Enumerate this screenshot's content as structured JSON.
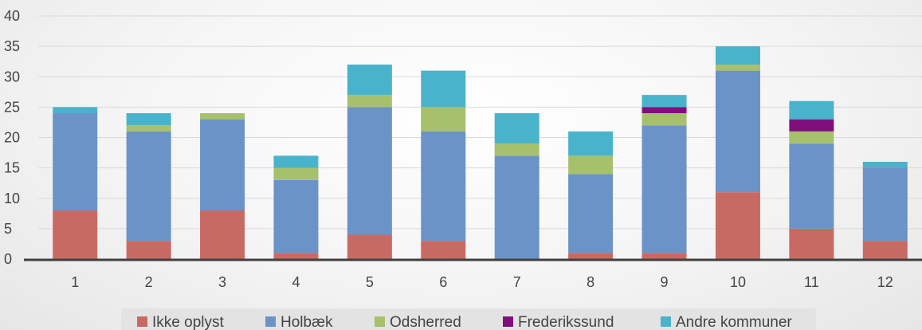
{
  "chart_data": {
    "type": "bar",
    "stacked": true,
    "categories": [
      "1",
      "2",
      "3",
      "4",
      "5",
      "6",
      "7",
      "8",
      "9",
      "10",
      "11",
      "12"
    ],
    "series": [
      {
        "name": "Ikke oplyst",
        "color": "#c86a64",
        "values": [
          8,
          3,
          8,
          1,
          4,
          3,
          0,
          1,
          1,
          11,
          5,
          3
        ]
      },
      {
        "name": "Holbæk",
        "color": "#6b93c8",
        "values": [
          16,
          18,
          15,
          12,
          21,
          18,
          17,
          13,
          21,
          20,
          14,
          12
        ]
      },
      {
        "name": "Odsherred",
        "color": "#a7c06c",
        "values": [
          0,
          1,
          1,
          2,
          2,
          4,
          2,
          3,
          2,
          1,
          2,
          0
        ]
      },
      {
        "name": "Frederikssund",
        "color": "#800f7e",
        "values": [
          0,
          0,
          0,
          0,
          0,
          0,
          0,
          0,
          1,
          0,
          2,
          0
        ]
      },
      {
        "name": "Andre kommuner",
        "color": "#4ab3cc",
        "values": [
          1,
          2,
          0,
          2,
          5,
          6,
          5,
          4,
          2,
          3,
          3,
          1
        ]
      }
    ],
    "yticks": [
      "0",
      "5",
      "10",
      "15",
      "20",
      "25",
      "30",
      "35",
      "40"
    ],
    "ylim": [
      0,
      40
    ],
    "grid": true,
    "legend_position": "bottom"
  }
}
